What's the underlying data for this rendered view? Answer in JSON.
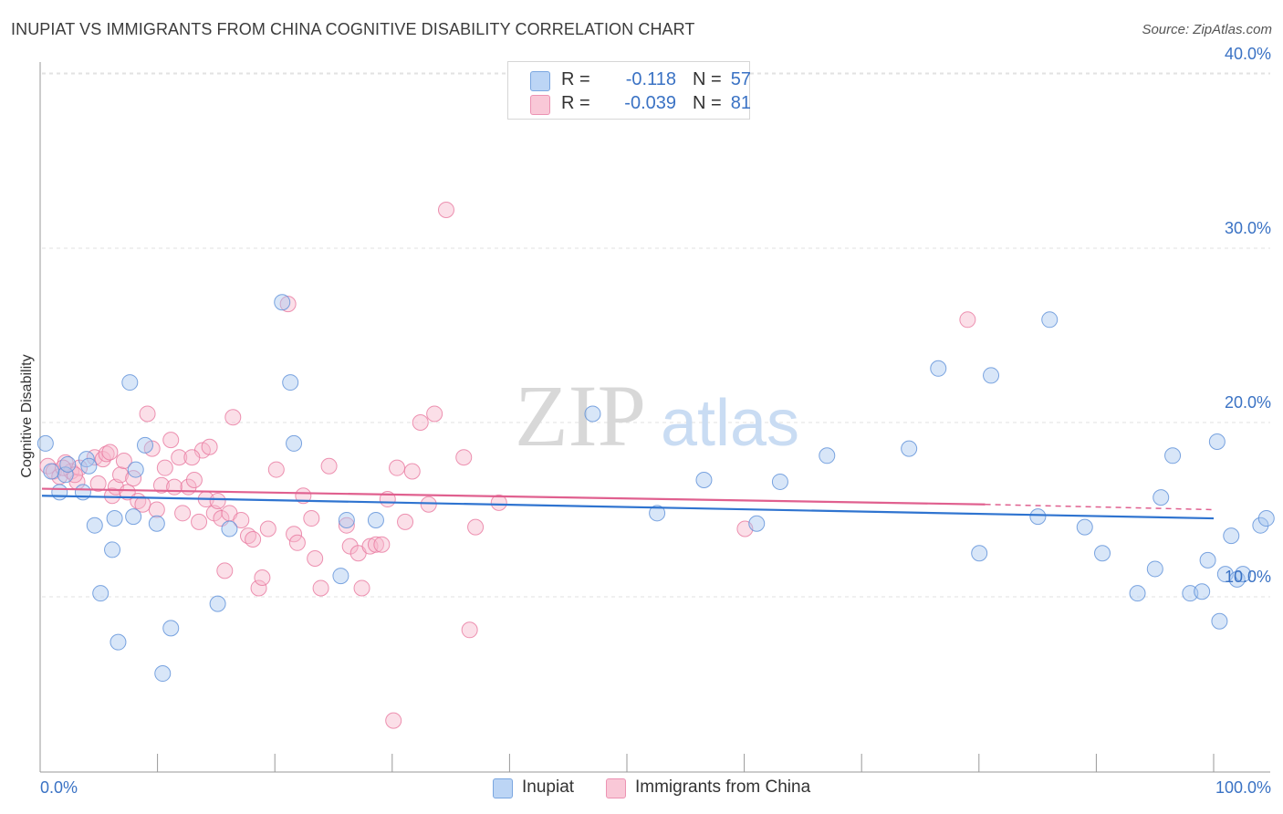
{
  "title": "INUPIAT VS IMMIGRANTS FROM CHINA COGNITIVE DISABILITY CORRELATION CHART",
  "source": "Source: ZipAtlas.com",
  "watermark": {
    "zip": "ZIP",
    "atlas": "atlas"
  },
  "stats": [
    {
      "r_label": "R =",
      "r_value": "-0.118",
      "n_label": "N =",
      "n_value": "57"
    },
    {
      "r_label": "R =",
      "r_value": "-0.039",
      "n_label": "N =",
      "n_value": "81"
    }
  ],
  "legend": [
    {
      "label": "Inupiat"
    },
    {
      "label": "Immigrants from China"
    }
  ],
  "colors": {
    "inupiat_fill": "#a9c8f0",
    "inupiat_stroke": "#5b8fd8",
    "inupiat_line": "#2f74d0",
    "china_fill": "#f7b7cb",
    "china_stroke": "#e8789f",
    "china_line": "#e0608f",
    "axis_text": "#3a72c4",
    "grid": "#e2e2e2"
  },
  "chart_data": {
    "type": "scatter",
    "title": "INUPIAT VS IMMIGRANTS FROM CHINA COGNITIVE DISABILITY CORRELATION CHART",
    "xlabel": "",
    "ylabel": "Cognitive Disability",
    "xlim": [
      0,
      100
    ],
    "ylim": [
      0,
      42
    ],
    "x_tick_labels": [
      "0.0%",
      "100.0%"
    ],
    "y_ticks": [
      10,
      20,
      30,
      40
    ],
    "y_tick_labels": [
      "10.0%",
      "20.0%",
      "30.0%",
      "40.0%"
    ],
    "series": [
      {
        "name": "Inupiat",
        "r": -0.118,
        "n": 57,
        "trend": {
          "x": [
            0,
            100
          ],
          "y": [
            15.8,
            14.5
          ]
        },
        "points": [
          [
            0.3,
            18.8
          ],
          [
            1.5,
            16.0
          ],
          [
            2.0,
            17.0
          ],
          [
            2.2,
            17.6
          ],
          [
            3.5,
            16.0
          ],
          [
            3.8,
            17.9
          ],
          [
            4.0,
            17.5
          ],
          [
            4.5,
            14.1
          ],
          [
            5.0,
            10.2
          ],
          [
            6.0,
            12.7
          ],
          [
            6.2,
            14.5
          ],
          [
            6.5,
            7.4
          ],
          [
            7.5,
            22.3
          ],
          [
            7.8,
            14.6
          ],
          [
            8.0,
            17.3
          ],
          [
            8.8,
            18.7
          ],
          [
            9.8,
            14.2
          ],
          [
            10.3,
            5.6
          ],
          [
            11.0,
            8.2
          ],
          [
            15.0,
            9.6
          ],
          [
            16.0,
            13.9
          ],
          [
            20.5,
            26.9
          ],
          [
            21.2,
            22.3
          ],
          [
            21.5,
            18.8
          ],
          [
            25.5,
            11.2
          ],
          [
            26.0,
            14.4
          ],
          [
            28.5,
            14.4
          ],
          [
            47.0,
            20.5
          ],
          [
            52.5,
            14.8
          ],
          [
            56.5,
            16.7
          ],
          [
            61.0,
            14.2
          ],
          [
            63.0,
            16.6
          ],
          [
            67.0,
            18.1
          ],
          [
            74.0,
            18.5
          ],
          [
            76.5,
            23.1
          ],
          [
            80.0,
            12.5
          ],
          [
            81.0,
            22.7
          ],
          [
            85.0,
            14.6
          ],
          [
            86.0,
            25.9
          ],
          [
            89.0,
            14.0
          ],
          [
            90.5,
            12.5
          ],
          [
            93.5,
            10.2
          ],
          [
            95.0,
            11.6
          ],
          [
            95.5,
            15.7
          ],
          [
            96.5,
            18.1
          ],
          [
            98.0,
            10.2
          ],
          [
            99.0,
            10.3
          ],
          [
            99.5,
            12.1
          ],
          [
            100.3,
            18.9
          ],
          [
            100.5,
            8.6
          ],
          [
            101.0,
            11.3
          ],
          [
            101.5,
            13.5
          ],
          [
            102.0,
            11.0
          ],
          [
            102.5,
            11.3
          ],
          [
            104.0,
            14.1
          ],
          [
            104.5,
            14.5
          ],
          [
            0.8,
            17.2
          ]
        ]
      },
      {
        "name": "Immigrants from China",
        "r": -0.039,
        "n": 81,
        "trend": {
          "x": [
            0,
            80.5
          ],
          "y": [
            16.2,
            15.3
          ]
        },
        "trend_ext": {
          "x": [
            80.5,
            100
          ],
          "y": [
            15.3,
            15.0
          ]
        },
        "points": [
          [
            0.5,
            17.5
          ],
          [
            1.0,
            17.2
          ],
          [
            1.5,
            16.9
          ],
          [
            2.0,
            17.7
          ],
          [
            2.5,
            17.2
          ],
          [
            3.0,
            16.6
          ],
          [
            3.2,
            17.4
          ],
          [
            4.5,
            18.0
          ],
          [
            4.8,
            16.5
          ],
          [
            5.2,
            17.9
          ],
          [
            5.5,
            18.2
          ],
          [
            6.0,
            15.8
          ],
          [
            6.3,
            16.3
          ],
          [
            6.7,
            17.0
          ],
          [
            7.0,
            17.8
          ],
          [
            7.3,
            16.0
          ],
          [
            7.8,
            16.8
          ],
          [
            8.2,
            15.5
          ],
          [
            8.6,
            15.3
          ],
          [
            9.0,
            20.5
          ],
          [
            9.4,
            18.5
          ],
          [
            9.8,
            15.0
          ],
          [
            10.2,
            16.4
          ],
          [
            10.5,
            17.4
          ],
          [
            11.0,
            19.0
          ],
          [
            11.3,
            16.3
          ],
          [
            11.7,
            18.0
          ],
          [
            12.0,
            14.8
          ],
          [
            12.5,
            16.3
          ],
          [
            13.0,
            16.7
          ],
          [
            13.4,
            14.3
          ],
          [
            13.7,
            18.4
          ],
          [
            14.0,
            15.6
          ],
          [
            14.3,
            18.6
          ],
          [
            14.7,
            14.8
          ],
          [
            15.0,
            15.5
          ],
          [
            15.3,
            14.5
          ],
          [
            15.6,
            11.5
          ],
          [
            16.0,
            14.8
          ],
          [
            16.3,
            20.3
          ],
          [
            17.0,
            14.4
          ],
          [
            17.6,
            13.5
          ],
          [
            18.0,
            13.3
          ],
          [
            18.5,
            10.5
          ],
          [
            18.8,
            11.1
          ],
          [
            19.3,
            13.9
          ],
          [
            20.0,
            17.3
          ],
          [
            21.0,
            26.8
          ],
          [
            21.5,
            13.6
          ],
          [
            21.8,
            13.1
          ],
          [
            22.3,
            15.8
          ],
          [
            23.0,
            14.5
          ],
          [
            23.3,
            12.2
          ],
          [
            23.8,
            10.5
          ],
          [
            24.5,
            17.5
          ],
          [
            26.0,
            14.1
          ],
          [
            26.3,
            12.9
          ],
          [
            27.0,
            12.5
          ],
          [
            27.3,
            10.5
          ],
          [
            28.0,
            12.9
          ],
          [
            28.5,
            13.0
          ],
          [
            29.0,
            13.0
          ],
          [
            29.5,
            15.6
          ],
          [
            30.3,
            17.4
          ],
          [
            31.0,
            14.3
          ],
          [
            31.6,
            17.2
          ],
          [
            32.3,
            20.0
          ],
          [
            33.0,
            15.3
          ],
          [
            33.5,
            20.5
          ],
          [
            34.5,
            32.2
          ],
          [
            36.0,
            18.0
          ],
          [
            36.5,
            8.1
          ],
          [
            37.0,
            14.0
          ],
          [
            39.0,
            15.4
          ],
          [
            60.0,
            13.9
          ],
          [
            79.0,
            25.9
          ],
          [
            30.0,
            2.9
          ],
          [
            2.8,
            17.0
          ],
          [
            5.8,
            18.3
          ],
          [
            12.8,
            18.0
          ],
          [
            1.8,
            17.4
          ]
        ]
      }
    ]
  }
}
